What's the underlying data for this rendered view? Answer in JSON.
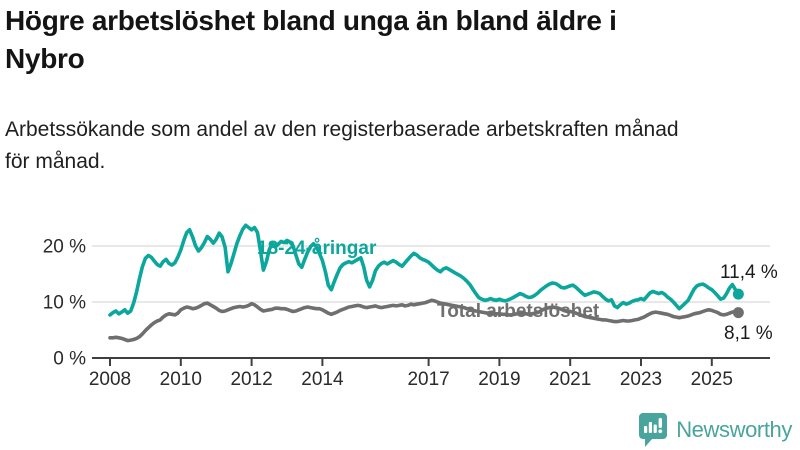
{
  "title": "Högre arbetslöshet bland unga än bland äldre i\nNybro",
  "subtitle": "Arbetssökande som andel av den registerbaserade arbetskraften månad\nför månad.",
  "branding": {
    "wordmark": "Newsworthy",
    "logo_color": "#4AA49E"
  },
  "chart_data": {
    "type": "line",
    "title": "Högre arbetslöshet bland unga än bland äldre i Nybro",
    "subtitle": "Arbetssökande som andel av den registerbaserade arbetskraften månad för månad.",
    "x_interval": "monthly",
    "x_start": "2008-01",
    "x_end": "2025-10",
    "x_ticks": [
      "2008",
      "2010",
      "2012",
      "2014",
      "2017",
      "2019",
      "2021",
      "2023",
      "2025"
    ],
    "y_ticks": [
      {
        "value": 0,
        "label": "0 %"
      },
      {
        "value": 10,
        "label": "10 %"
      },
      {
        "value": 20,
        "label": "20 %"
      }
    ],
    "ylim": [
      0,
      25
    ],
    "grid": "horizontal",
    "legend_position": "inline-labels",
    "axis_color": "#3f3f3f",
    "grid_color": "#d9d9d9",
    "tick_label_color": "#2b2b2b",
    "series": [
      {
        "name": "18-24-åringar",
        "color": "#0BA69C",
        "end_value": 11.4,
        "end_label": "11,4 %",
        "values": [
          7.7,
          8.1,
          8.4,
          7.9,
          8.2,
          8.6,
          8.0,
          8.4,
          9.8,
          11.8,
          14.2,
          16.3,
          17.8,
          18.3,
          18.0,
          17.3,
          16.7,
          16.4,
          17.2,
          17.6,
          16.9,
          16.6,
          17.0,
          18.0,
          19.3,
          21.0,
          22.4,
          22.9,
          21.6,
          20.0,
          19.1,
          19.7,
          20.6,
          21.7,
          21.2,
          20.5,
          21.2,
          22.3,
          21.6,
          19.8,
          15.4,
          16.8,
          18.6,
          20.4,
          21.8,
          23.0,
          23.7,
          23.3,
          22.9,
          23.3,
          22.4,
          19.2,
          15.7,
          17.2,
          19.4,
          20.4,
          19.8,
          20.3,
          20.8,
          20.6,
          21.0,
          20.7,
          20.1,
          18.4,
          16.8,
          16.2,
          17.6,
          18.9,
          19.9,
          20.4,
          19.8,
          18.7,
          17.4,
          15.4,
          13.0,
          12.2,
          13.6,
          14.9,
          16.1,
          16.7,
          17.0,
          17.2,
          17.0,
          17.3,
          17.6,
          17.9,
          16.3,
          13.9,
          12.7,
          13.9,
          15.6,
          16.4,
          16.9,
          17.1,
          16.8,
          17.1,
          17.4,
          17.1,
          16.7,
          16.4,
          17.0,
          17.6,
          18.2,
          18.7,
          18.4,
          17.9,
          17.6,
          17.4,
          17.1,
          16.6,
          16.1,
          15.7,
          15.4,
          15.9,
          16.1,
          15.8,
          15.5,
          15.2,
          14.9,
          14.6,
          14.2,
          13.7,
          13.1,
          12.3,
          11.5,
          10.8,
          10.5,
          10.3,
          10.4,
          10.6,
          10.4,
          10.3,
          10.5,
          10.3,
          10.2,
          10.4,
          10.6,
          10.9,
          11.2,
          11.5,
          11.3,
          11.0,
          10.8,
          10.9,
          11.2,
          11.6,
          12.1,
          12.5,
          12.9,
          13.2,
          13.4,
          13.3,
          13.0,
          12.6,
          12.5,
          12.7,
          12.9,
          13.0,
          12.6,
          12.1,
          11.6,
          11.2,
          11.4,
          11.6,
          11.8,
          11.7,
          11.5,
          11.0,
          10.5,
          10.2,
          10.4,
          9.3,
          9.0,
          9.5,
          9.9,
          9.6,
          9.8,
          10.1,
          10.3,
          10.4,
          10.6,
          10.4,
          11.0,
          11.6,
          11.9,
          11.7,
          11.5,
          11.7,
          11.4,
          10.9,
          10.5,
          10.0,
          9.4,
          8.8,
          9.3,
          9.8,
          10.3,
          11.3,
          12.3,
          12.9,
          13.1,
          13.2,
          12.9,
          12.5,
          12.2,
          11.7,
          11.1,
          10.5,
          10.7,
          11.5,
          12.5,
          13.1,
          12.2,
          11.4
        ]
      },
      {
        "name": "Total arbetslöshet",
        "color": "#6F6F6F",
        "end_value": 8.1,
        "end_label": "8,1 %",
        "values": [
          3.6,
          3.6,
          3.7,
          3.6,
          3.5,
          3.3,
          3.1,
          3.2,
          3.3,
          3.5,
          3.8,
          4.3,
          4.9,
          5.4,
          5.9,
          6.3,
          6.6,
          6.8,
          7.3,
          7.7,
          7.9,
          7.8,
          7.7,
          8.0,
          8.6,
          8.9,
          9.1,
          9.0,
          8.8,
          8.9,
          9.1,
          9.4,
          9.7,
          9.8,
          9.5,
          9.2,
          8.9,
          8.5,
          8.3,
          8.4,
          8.6,
          8.8,
          9.0,
          9.1,
          9.2,
          9.1,
          9.2,
          9.4,
          9.7,
          9.5,
          9.1,
          8.7,
          8.4,
          8.5,
          8.6,
          8.7,
          8.9,
          8.9,
          8.8,
          8.8,
          8.7,
          8.5,
          8.3,
          8.4,
          8.6,
          8.8,
          9.0,
          9.1,
          9.0,
          8.9,
          8.8,
          8.8,
          8.6,
          8.3,
          8.0,
          7.8,
          8.0,
          8.2,
          8.5,
          8.7,
          8.9,
          9.1,
          9.2,
          9.3,
          9.4,
          9.3,
          9.1,
          9.0,
          9.1,
          9.2,
          9.3,
          9.1,
          9.0,
          9.1,
          9.2,
          9.3,
          9.4,
          9.3,
          9.4,
          9.5,
          9.3,
          9.4,
          9.6,
          9.5,
          9.6,
          9.7,
          9.8,
          9.9,
          10.1,
          10.3,
          10.2,
          10.0,
          9.8,
          9.7,
          9.6,
          9.5,
          9.4,
          9.3,
          9.2,
          9.1,
          9.0,
          8.8,
          8.7,
          8.5,
          8.4,
          8.3,
          8.2,
          8.1,
          8.0,
          8.0,
          7.9,
          7.9,
          7.9,
          7.8,
          7.8,
          7.7,
          7.7,
          7.8,
          7.9,
          8.0,
          7.9,
          7.9,
          7.8,
          7.9,
          8.0,
          8.1,
          8.4,
          8.7,
          8.9,
          9.0,
          9.1,
          9.0,
          8.9,
          8.7,
          8.5,
          8.4,
          8.3,
          8.2,
          8.0,
          7.8,
          7.6,
          7.4,
          7.3,
          7.2,
          7.1,
          7.0,
          6.9,
          6.8,
          6.8,
          6.7,
          6.6,
          6.5,
          6.5,
          6.6,
          6.7,
          6.6,
          6.6,
          6.7,
          6.8,
          6.9,
          7.1,
          7.3,
          7.6,
          7.9,
          8.1,
          8.2,
          8.1,
          8.0,
          7.9,
          7.8,
          7.6,
          7.4,
          7.3,
          7.2,
          7.3,
          7.4,
          7.5,
          7.7,
          7.9,
          8.0,
          8.1,
          8.3,
          8.5,
          8.6,
          8.5,
          8.3,
          8.1,
          7.8,
          7.7,
          7.8,
          8.0,
          8.2,
          8.3,
          8.1
        ]
      }
    ]
  }
}
